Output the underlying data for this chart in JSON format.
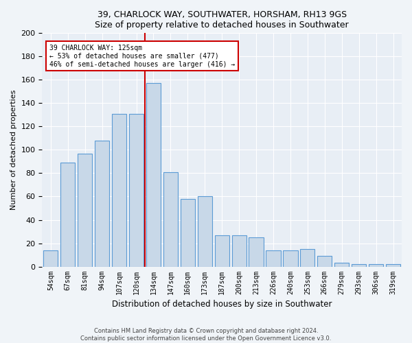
{
  "title1": "39, CHARLOCK WAY, SOUTHWATER, HORSHAM, RH13 9GS",
  "title2": "Size of property relative to detached houses in Southwater",
  "xlabel": "Distribution of detached houses by size in Southwater",
  "ylabel": "Number of detached properties",
  "categories": [
    "54sqm",
    "67sqm",
    "81sqm",
    "94sqm",
    "107sqm",
    "120sqm",
    "134sqm",
    "147sqm",
    "160sqm",
    "173sqm",
    "187sqm",
    "200sqm",
    "213sqm",
    "226sqm",
    "240sqm",
    "253sqm",
    "266sqm",
    "279sqm",
    "293sqm",
    "306sqm",
    "319sqm"
  ],
  "values": [
    14,
    89,
    97,
    108,
    131,
    131,
    157,
    81,
    58,
    60,
    27,
    27,
    25,
    14,
    14,
    15,
    9,
    3,
    2,
    2,
    2
  ],
  "bar_color": "#c8d8e8",
  "bar_edge_color": "#5b9bd5",
  "annotation_line1": "39 CHARLOCK WAY: 125sqm",
  "annotation_line2": "← 53% of detached houses are smaller (477)",
  "annotation_line3": "46% of semi-detached houses are larger (416) →",
  "vline_color": "#cc0000",
  "vline_x": 5.5,
  "annotation_box_edge": "#cc0000",
  "footer1": "Contains HM Land Registry data © Crown copyright and database right 2024.",
  "footer2": "Contains public sector information licensed under the Open Government Licence v3.0.",
  "bg_color": "#e8eef5",
  "fig_bg_color": "#f0f4f8",
  "ylim": [
    0,
    200
  ],
  "yticks": [
    0,
    20,
    40,
    60,
    80,
    100,
    120,
    140,
    160,
    180,
    200
  ]
}
